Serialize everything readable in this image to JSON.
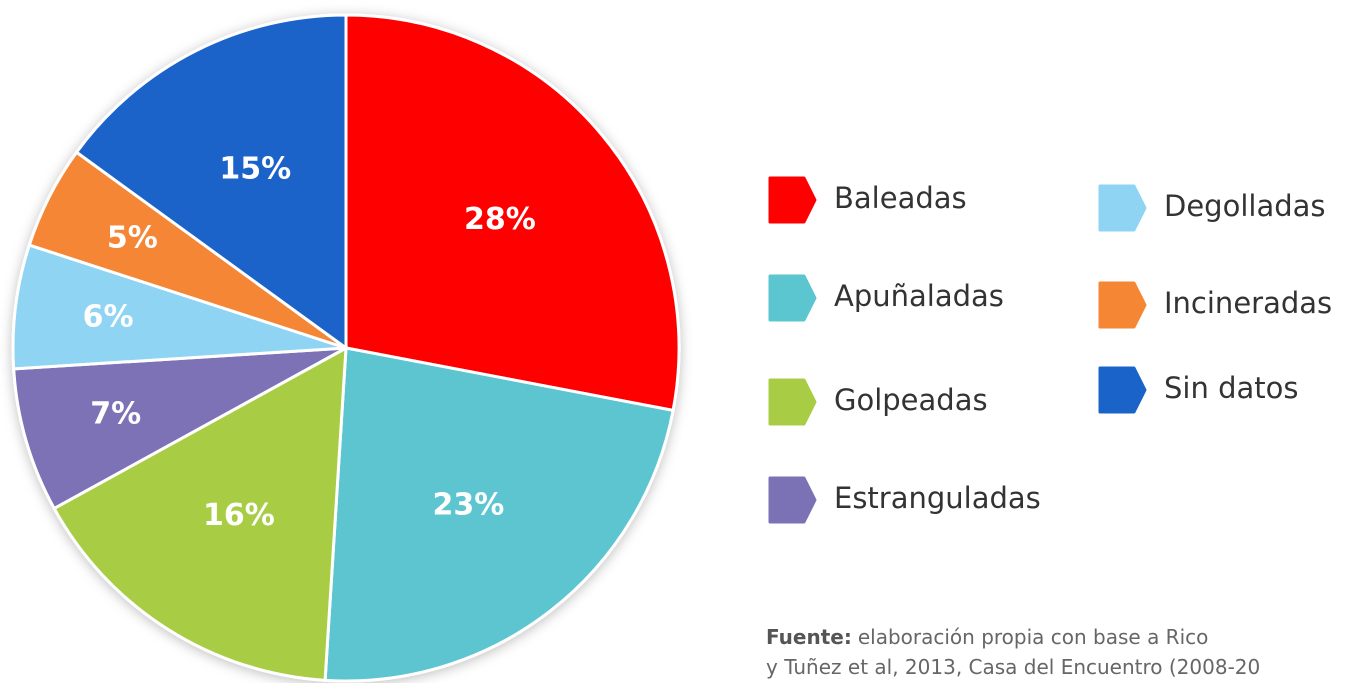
{
  "chart_data": {
    "type": "pie",
    "categories": [
      "Baleadas",
      "Apuñaladas",
      "Golpeadas",
      "Estranguladas",
      "Degolladas",
      "Incineradas",
      "Sin datos"
    ],
    "values": [
      28,
      23,
      16,
      7,
      6,
      5,
      15
    ],
    "value_labels": [
      "28%",
      "23%",
      "16%",
      "7%",
      "6%",
      "5%",
      "15%"
    ],
    "colors": [
      "#ff0000",
      "#5bc5d0",
      "#a8cd44",
      "#7b72b5",
      "#8fd4f2",
      "#f58634",
      "#1a63c9"
    ],
    "source_label": "Fuente:",
    "source_lines": [
      "elaboración propia con base a Rico",
      "y Tuñez et al, 2013, Casa del Encuentro (2008-20"
    ]
  }
}
